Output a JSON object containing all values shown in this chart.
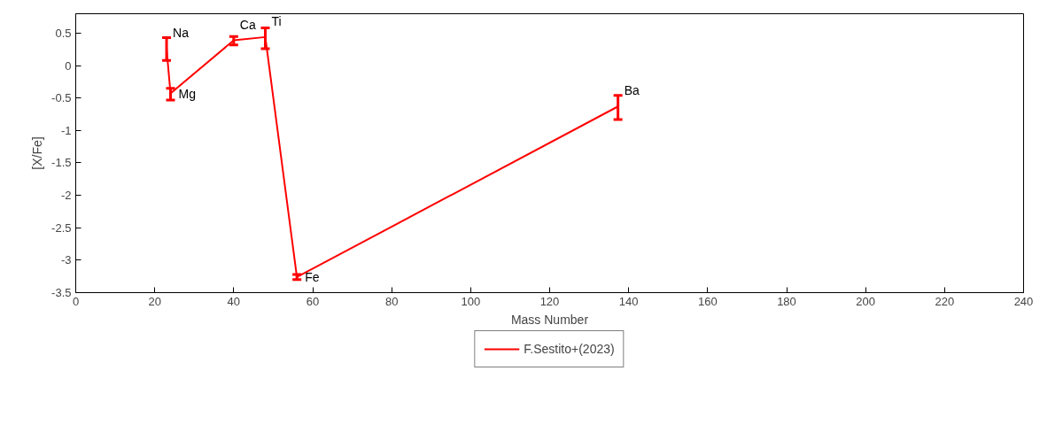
{
  "chart_data": {
    "type": "line",
    "xlabel": "Mass Number",
    "ylabel": "[X/Fe]",
    "x": [
      23,
      24,
      40,
      48,
      56,
      137.3
    ],
    "series": [
      {
        "name": "F.Sestito+(2023)",
        "color": "#ff0000",
        "values": [
          0.26,
          -0.43,
          0.39,
          0.44,
          -3.26,
          -0.63
        ],
        "errors": [
          [
            0.08,
            0.43
          ],
          [
            -0.53,
            -0.35
          ],
          [
            0.32,
            0.45
          ],
          [
            0.26,
            0.58
          ],
          [
            -3.3,
            -3.22
          ],
          [
            -0.83,
            -0.46
          ]
        ]
      }
    ],
    "xlim": [
      0,
      240
    ],
    "xticks": [
      0,
      20,
      40,
      60,
      80,
      100,
      120,
      140,
      160,
      180,
      200,
      220,
      240
    ],
    "ylim": [
      -3.5,
      0.8
    ],
    "yticks": [
      -3.5,
      -3,
      -2.5,
      -2,
      -1.5,
      -1,
      -0.5,
      0,
      0.5
    ],
    "annotations": [
      {
        "text": "Na",
        "x": 23,
        "y": 0.26
      },
      {
        "text": "Mg",
        "x": 24,
        "y": -0.43
      },
      {
        "text": "Ca",
        "x": 40,
        "y": 0.39
      },
      {
        "text": "Ti",
        "x": 48,
        "y": 0.44
      },
      {
        "text": "Fe",
        "x": 56,
        "y": -3.26
      },
      {
        "text": "Ba",
        "x": 137.3,
        "y": -0.63
      }
    ],
    "legend": "bottom",
    "grid": false,
    "marker": "none",
    "line_style": "solid"
  }
}
